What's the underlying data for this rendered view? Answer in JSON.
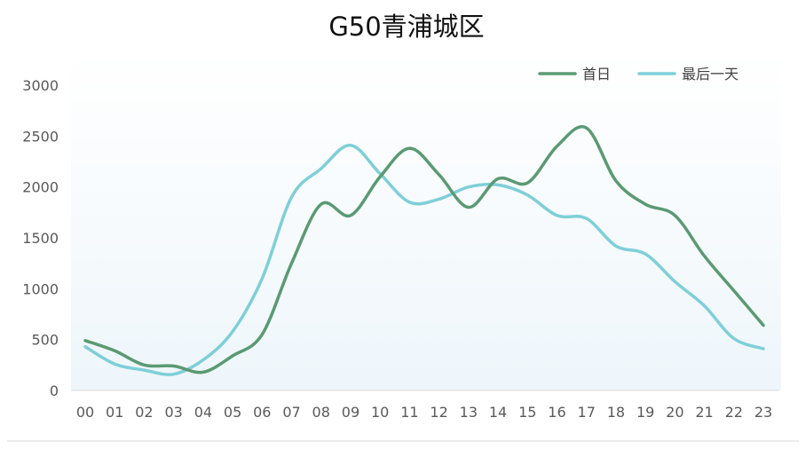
{
  "chart_data": {
    "type": "line",
    "title": "G50青浦城区",
    "xlabel": "",
    "ylabel": "",
    "ylim": [
      0,
      3000
    ],
    "yticks": [
      0,
      500,
      1000,
      1500,
      2000,
      2500,
      3000
    ],
    "categories": [
      "00",
      "01",
      "02",
      "03",
      "04",
      "05",
      "06",
      "07",
      "08",
      "09",
      "10",
      "11",
      "12",
      "13",
      "14",
      "15",
      "16",
      "17",
      "18",
      "19",
      "20",
      "21",
      "22",
      "23"
    ],
    "series": [
      {
        "name": "首日",
        "color": "#5a9a72",
        "values": [
          490,
          390,
          250,
          240,
          180,
          340,
          550,
          1250,
          1830,
          1720,
          2100,
          2380,
          2120,
          1800,
          2080,
          2040,
          2400,
          2580,
          2060,
          1830,
          1720,
          1320,
          980,
          640
        ]
      },
      {
        "name": "最后一天",
        "color": "#7ecfd8",
        "values": [
          430,
          260,
          200,
          160,
          300,
          580,
          1100,
          1900,
          2180,
          2410,
          2130,
          1850,
          1880,
          2000,
          2020,
          1920,
          1720,
          1690,
          1420,
          1340,
          1070,
          830,
          510,
          410
        ]
      }
    ],
    "grid": false,
    "legend": "top-right"
  }
}
